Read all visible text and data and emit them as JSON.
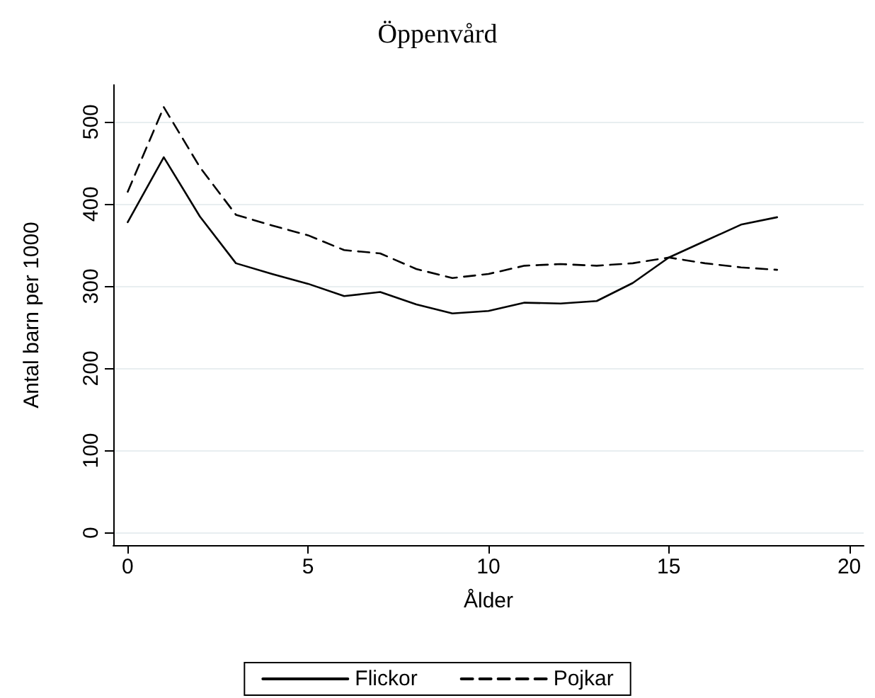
{
  "chart_data": {
    "type": "line",
    "title": "Öppenvård",
    "xlabel": "Ålder",
    "ylabel": "Antal barn per 1000",
    "x": [
      0,
      1,
      2,
      3,
      4,
      5,
      6,
      7,
      8,
      9,
      10,
      11,
      12,
      13,
      14,
      15,
      16,
      17,
      18
    ],
    "series": [
      {
        "name": "Flickor",
        "color": "#000000",
        "line_style": "solid",
        "values": [
          378,
          457,
          385,
          328,
          315,
          303,
          288,
          293,
          278,
          267,
          270,
          280,
          279,
          282,
          304,
          335,
          355,
          375,
          384
        ]
      },
      {
        "name": "Pojkar",
        "color": "#000000",
        "line_style": "dashed",
        "values": [
          415,
          518,
          445,
          387,
          374,
          362,
          344,
          340,
          321,
          310,
          315,
          325,
          327,
          325,
          328,
          335,
          328,
          323,
          320
        ]
      }
    ],
    "xlim": [
      -0.4,
      20.4
    ],
    "xticks": [
      0,
      5,
      10,
      15,
      20
    ],
    "ylim": [
      -15,
      545
    ],
    "yticks": [
      0,
      100,
      200,
      300,
      400,
      500
    ],
    "grid": "y",
    "legend": "bottom",
    "marker": "none"
  }
}
